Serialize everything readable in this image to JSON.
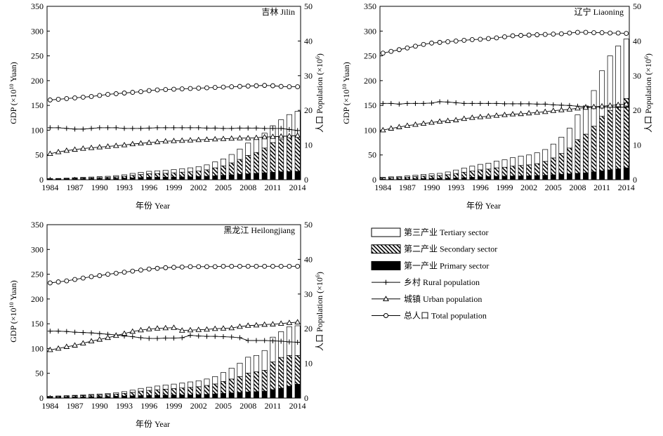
{
  "shared": {
    "xlabel": "年份 Year",
    "ylabel_left": "GDP (×10^10 Yuan)",
    "ylabel_right": "人口 Population (×10^6)",
    "xticks": [
      "1984",
      "1987",
      "1990",
      "1993",
      "1996",
      "1999",
      "2002",
      "2005",
      "2008",
      "2011",
      "2014"
    ],
    "yticks_left": [
      "0",
      "50",
      "100",
      "150",
      "200",
      "250",
      "300",
      "350"
    ],
    "yticks_right": [
      "0",
      "10",
      "20",
      "30",
      "40",
      "50"
    ]
  },
  "legend": [
    {
      "key": "tertiary",
      "label": "第三产业 Tertiary sector",
      "symbol": "white-bar"
    },
    {
      "key": "secondary",
      "label": "第二产业 Secondary sector",
      "symbol": "hatched-bar"
    },
    {
      "key": "primary",
      "label": "第一产业 Primary sector",
      "symbol": "black-bar"
    },
    {
      "key": "rural",
      "label": "乡村 Rural population",
      "symbol": "plus-line"
    },
    {
      "key": "urban",
      "label": "城镇 Urban population",
      "symbol": "triangle-line"
    },
    {
      "key": "total",
      "label": "总人口 Total population",
      "symbol": "circle-line"
    }
  ],
  "chart_data": [
    {
      "type": "bar",
      "title": "吉林 Jilin",
      "x": [
        1984,
        1985,
        1986,
        1987,
        1988,
        1989,
        1990,
        1991,
        1992,
        1993,
        1994,
        1995,
        1996,
        1997,
        1998,
        1999,
        2000,
        2001,
        2002,
        2003,
        2004,
        2005,
        2006,
        2007,
        2008,
        2009,
        2010,
        2011,
        2012,
        2013,
        2014
      ],
      "ylim": [
        0,
        350
      ],
      "y2lim": [
        0,
        50
      ],
      "series": [
        {
          "name": "第一产业 Primary sector",
          "values": [
            1,
            1,
            1.2,
            1.5,
            1.8,
            2,
            2.3,
            2.5,
            2.8,
            3.2,
            3.8,
            4.5,
            5,
            5,
            5.2,
            5.5,
            5.8,
            6,
            6.5,
            7,
            8,
            9,
            10,
            11,
            12,
            13,
            14,
            15,
            16,
            16.5,
            17
          ]
        },
        {
          "name": "第二产业 Secondary sector",
          "values": [
            0.8,
            1,
            1.2,
            1.5,
            1.8,
            2,
            2.2,
            2.5,
            3,
            3.8,
            5,
            6,
            7,
            7.5,
            7.8,
            8.5,
            9.5,
            10,
            11,
            13,
            16,
            19,
            24,
            30,
            37,
            42,
            50,
            60,
            65,
            70,
            70
          ]
        },
        {
          "name": "第三产业 Tertiary sector",
          "values": [
            0.5,
            0.6,
            0.8,
            1,
            1.2,
            1.5,
            1.7,
            2,
            2.5,
            3,
            4,
            4.5,
            5,
            5.5,
            6,
            6.5,
            7,
            8,
            9,
            10,
            12,
            14,
            17,
            21,
            25,
            27,
            30,
            34,
            40,
            45,
            51
          ]
        },
        {
          "name": "乡村 Rural population",
          "axis": "right",
          "values": [
            15,
            15,
            14.8,
            14.6,
            14.6,
            14.8,
            15,
            15,
            15,
            14.8,
            14.8,
            14.8,
            14.9,
            15,
            15,
            15,
            15,
            15,
            15,
            14.9,
            14.9,
            14.8,
            14.8,
            14.9,
            14.9,
            14.9,
            14.8,
            14.8,
            14.8,
            14.5,
            14.2
          ]
        },
        {
          "name": "城镇 Urban population",
          "axis": "right",
          "values": [
            7.5,
            8,
            8.4,
            8.7,
            9,
            9.2,
            9.4,
            9.6,
            9.8,
            10,
            10.3,
            10.5,
            10.7,
            10.9,
            11.1,
            11.2,
            11.3,
            11.4,
            11.5,
            11.6,
            11.7,
            11.8,
            11.9,
            12,
            12,
            12.1,
            12.3,
            12.4,
            12.5,
            12.6,
            12.7
          ]
        },
        {
          "name": "总人口 Total population",
          "axis": "right",
          "values": [
            23,
            23.2,
            23.4,
            23.6,
            23.8,
            24,
            24.3,
            24.6,
            24.8,
            25,
            25.2,
            25.4,
            25.7,
            25.9,
            26,
            26.1,
            26.2,
            26.3,
            26.4,
            26.5,
            26.6,
            26.7,
            26.8,
            26.9,
            27,
            27.1,
            27.2,
            27.1,
            26.9,
            26.8,
            26.8
          ]
        }
      ]
    },
    {
      "type": "bar",
      "title": "辽宁 Liaoning",
      "x": [
        1984,
        1985,
        1986,
        1987,
        1988,
        1989,
        1990,
        1991,
        1992,
        1993,
        1994,
        1995,
        1996,
        1997,
        1998,
        1999,
        2000,
        2001,
        2002,
        2003,
        2004,
        2005,
        2006,
        2007,
        2008,
        2009,
        2010,
        2011,
        2012,
        2013,
        2014
      ],
      "ylim": [
        0,
        350
      ],
      "y2lim": [
        0,
        50
      ],
      "series": [
        {
          "name": "第一产业 Primary sector",
          "values": [
            1,
            1.2,
            1.4,
            1.6,
            2,
            2.3,
            2.6,
            2.8,
            3.2,
            3.6,
            4.2,
            5,
            6,
            6.5,
            7,
            7.2,
            7.5,
            7.8,
            8,
            8.5,
            9,
            10,
            11,
            12,
            13,
            14,
            16,
            18,
            20,
            22,
            24
          ]
        },
        {
          "name": "第二产业 Secondary sector",
          "values": [
            2.5,
            3,
            3.3,
            3.7,
            4.3,
            5,
            5.2,
            5.6,
            7,
            9,
            11,
            12.5,
            14,
            15,
            17,
            18,
            20,
            21,
            22,
            24,
            28,
            34,
            42,
            52,
            68,
            78,
            92,
            110,
            120,
            130,
            140
          ]
        },
        {
          "name": "第三产业 Tertiary sector",
          "values": [
            1.5,
            1.7,
            2,
            2.4,
            3,
            3.5,
            4,
            4.5,
            5.5,
            7,
            8.5,
            10,
            11,
            12,
            13.5,
            15,
            17,
            19,
            20,
            22,
            24,
            28,
            33,
            40,
            50,
            57,
            72,
            92,
            110,
            118,
            120
          ]
        },
        {
          "name": "乡村 Rural population",
          "axis": "right",
          "values": [
            22,
            22,
            21.8,
            22,
            22,
            22,
            22.1,
            22.5,
            22.4,
            22.2,
            22,
            22,
            22,
            22,
            22,
            21.9,
            21.9,
            21.9,
            21.9,
            21.8,
            21.8,
            21.6,
            21.5,
            21.4,
            21.2,
            21.1,
            21,
            21,
            21,
            20.9,
            20.9
          ]
        },
        {
          "name": "城镇 Urban population",
          "axis": "right",
          "values": [
            14.3,
            14.8,
            15.2,
            15.6,
            15.9,
            16.2,
            16.5,
            16.8,
            17,
            17.2,
            17.6,
            17.9,
            18.1,
            18.3,
            18.5,
            18.7,
            18.9,
            19,
            19.2,
            19.4,
            19.6,
            19.9,
            20.1,
            20.3,
            20.6,
            20.8,
            21,
            21.2,
            21.4,
            21.6,
            21.8
          ]
        },
        {
          "name": "总人口 Total population",
          "axis": "right",
          "values": [
            36.5,
            37,
            37.5,
            38,
            38.5,
            39,
            39.4,
            39.6,
            39.8,
            40,
            40.2,
            40.4,
            40.5,
            40.7,
            40.9,
            41.2,
            41.5,
            41.6,
            41.7,
            41.8,
            41.9,
            42,
            42.1,
            42.3,
            42.5,
            42.5,
            42.4,
            42.4,
            42.3,
            42.3,
            42.2
          ]
        }
      ]
    },
    {
      "type": "bar",
      "title": "黑龙江 Heilongjiang",
      "x": [
        1984,
        1985,
        1986,
        1987,
        1988,
        1989,
        1990,
        1991,
        1992,
        1993,
        1994,
        1995,
        1996,
        1997,
        1998,
        1999,
        2000,
        2001,
        2002,
        2003,
        2004,
        2005,
        2006,
        2007,
        2008,
        2009,
        2010,
        2011,
        2012,
        2013,
        2014
      ],
      "ylim": [
        0,
        350
      ],
      "y2lim": [
        0,
        50
      ],
      "series": [
        {
          "name": "第一产业 Primary sector",
          "values": [
            1.5,
            1.7,
            1.9,
            2.1,
            2.4,
            2.7,
            3,
            3.2,
            3.6,
            4,
            4.5,
            5,
            5.5,
            5.8,
            6,
            6.2,
            6.4,
            6.6,
            7,
            7.5,
            8.5,
            9.5,
            10.5,
            11.5,
            12.5,
            13,
            14,
            17,
            20,
            24,
            28
          ]
        },
        {
          "name": "第二产业 Secondary sector",
          "values": [
            1.5,
            2,
            2.2,
            2.5,
            2.8,
            3.2,
            3.5,
            4,
            4.5,
            5.5,
            7,
            9,
            10,
            11,
            12,
            13,
            14,
            15,
            16,
            18,
            20,
            24,
            28,
            32,
            38,
            40,
            42,
            56,
            62,
            62,
            58
          ]
        },
        {
          "name": "第三产业 Tertiary sector",
          "values": [
            0.5,
            0.6,
            0.8,
            1,
            1.3,
            1.5,
            1.8,
            2.2,
            2.8,
            3.5,
            4.5,
            5.5,
            6.5,
            7.5,
            8.5,
            9,
            10,
            11,
            12,
            13,
            15,
            18,
            22,
            27,
            32,
            33,
            40,
            50,
            52,
            58,
            60
          ]
        },
        {
          "name": "乡村 Rural population",
          "axis": "right",
          "values": [
            19.3,
            19.3,
            19.2,
            19,
            18.9,
            18.8,
            18.6,
            18.4,
            18.2,
            17.9,
            17.7,
            17.4,
            17.2,
            17.2,
            17.3,
            17.3,
            17.4,
            18.1,
            17.9,
            17.8,
            17.8,
            17.7,
            17.6,
            17.4,
            16.6,
            16.6,
            16.6,
            16.5,
            16.4,
            16.2,
            16.1
          ]
        },
        {
          "name": "城镇 Urban population",
          "axis": "right",
          "values": [
            13.9,
            14.3,
            14.8,
            15.2,
            15.8,
            16.4,
            16.9,
            17.4,
            18,
            18.6,
            19.2,
            19.6,
            19.9,
            20.1,
            20.2,
            20.3,
            19.5,
            19.6,
            19.7,
            19.8,
            20,
            20.1,
            20.2,
            20.6,
            20.9,
            21,
            21.2,
            21.3,
            21.5,
            21.7,
            21.9
          ]
        },
        {
          "name": "总人口 Total population",
          "axis": "right",
          "values": [
            33.2,
            33.5,
            33.8,
            34.2,
            34.6,
            35,
            35.3,
            35.7,
            36,
            36.3,
            36.6,
            36.9,
            37.2,
            37.4,
            37.6,
            37.7,
            37.8,
            37.9,
            37.9,
            37.9,
            37.9,
            38,
            38,
            38,
            38,
            38,
            38,
            38,
            38,
            38,
            38
          ]
        }
      ]
    }
  ]
}
